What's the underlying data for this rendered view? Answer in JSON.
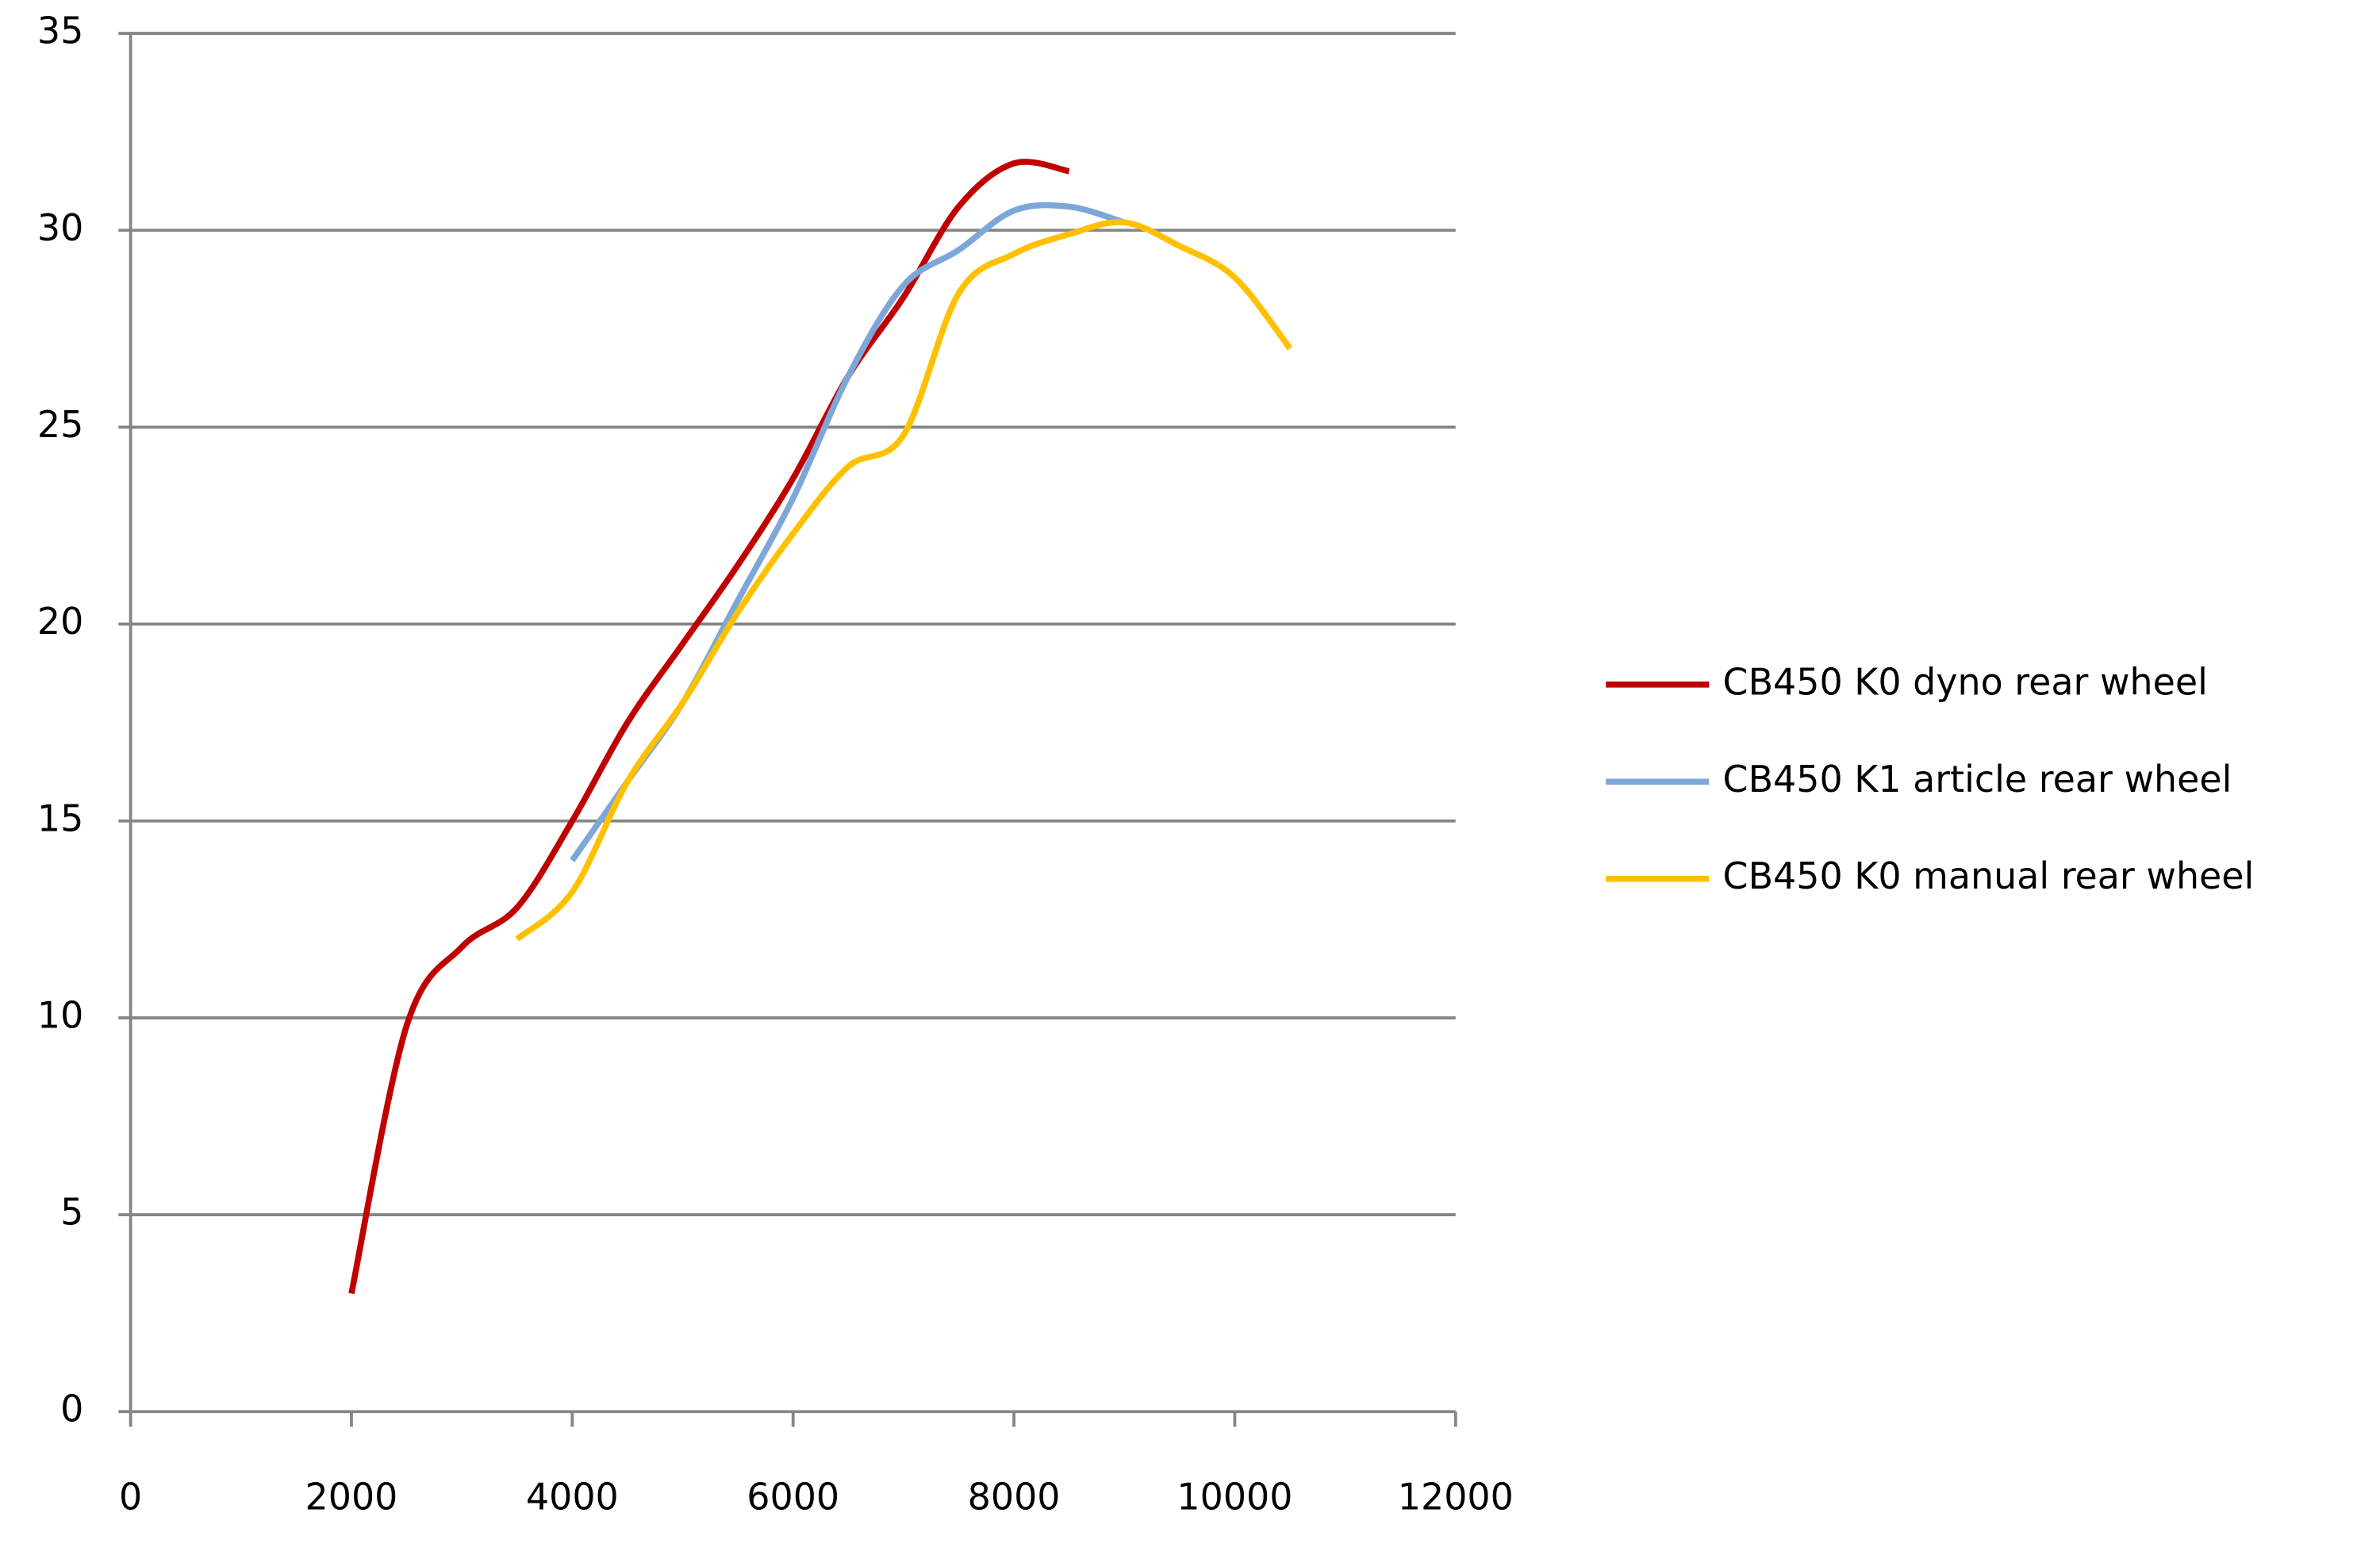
{
  "chart_data": {
    "type": "line",
    "x": [
      2000,
      2500,
      3000,
      3500,
      4000,
      4500,
      5000,
      5500,
      6000,
      6500,
      7000,
      7500,
      8000,
      8500,
      9000,
      9500,
      10000,
      10500
    ],
    "series": [
      {
        "name": "CB450 K0 dyno rear wheel",
        "color": "#c00000",
        "values": [
          3,
          9.8,
          11.8,
          12.8,
          15,
          17.5,
          19.5,
          21.5,
          23.7,
          26.3,
          28.3,
          30.6,
          31.7,
          31.5,
          null,
          null,
          null,
          null
        ]
      },
      {
        "name": "CB450 K1 article rear wheel",
        "color": "#7da7d9",
        "values": [
          null,
          null,
          null,
          null,
          14,
          16,
          18,
          20.6,
          23.2,
          26.3,
          28.6,
          29.5,
          30.5,
          30.6,
          30.2,
          null,
          null,
          null
        ]
      },
      {
        "name": "CB450 K0 manual rear wheel",
        "color": "#ffc000",
        "values": [
          null,
          null,
          null,
          12,
          13.2,
          16,
          18,
          20.3,
          22.3,
          24,
          24.8,
          28.4,
          29.4,
          29.9,
          30.2,
          29.6,
          28.8,
          27
        ]
      }
    ],
    "xlim": [
      0,
      12000
    ],
    "xticks": [
      0,
      2000,
      4000,
      6000,
      8000,
      10000,
      12000
    ],
    "ylim": [
      0,
      35
    ],
    "yticks": [
      0,
      5,
      10,
      15,
      20,
      25,
      30,
      35
    ],
    "grid": true,
    "legend": "right"
  }
}
